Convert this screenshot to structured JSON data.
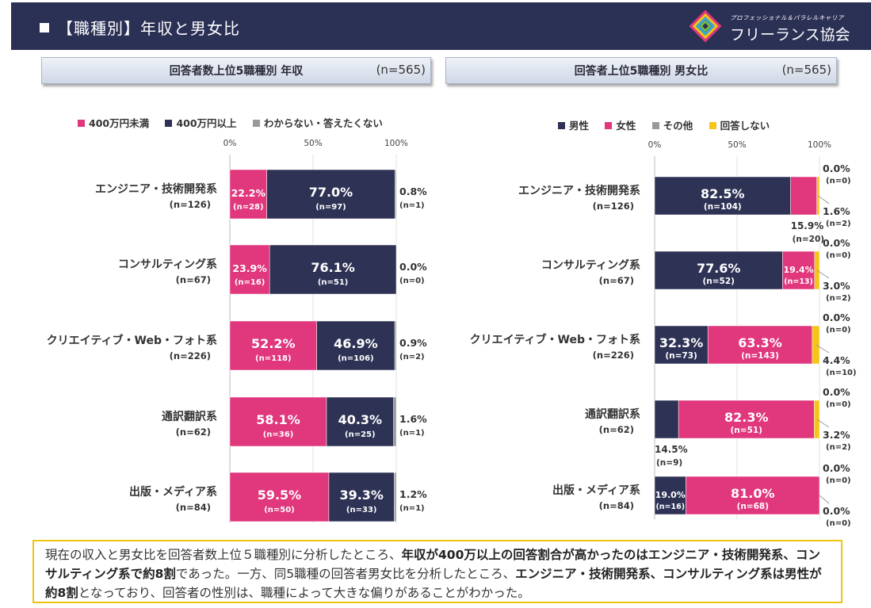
{
  "header": {
    "title": "【職種別】年収と男女比"
  },
  "logo": {
    "tagline": "プロフェッショナル＆パラレルキャリア",
    "name": "フリーランス協会"
  },
  "colors": {
    "pink": "#e0377d",
    "navy": "#2e3356",
    "gray": "#9a9a9a",
    "yellow": "#f5c518"
  },
  "ticks": [
    "0%",
    "50%",
    "100%"
  ],
  "chart_data": [
    {
      "type": "bar",
      "orientation": "horizontal",
      "stacked": true,
      "title": "回答者数上位5職種別 年収",
      "sample": "(n=565)",
      "xlim": [
        0,
        100
      ],
      "legend_position": "top",
      "categories": [
        {
          "name": "エンジニア・技術開発系",
          "n": "(n=126)"
        },
        {
          "name": "コンサルティング系",
          "n": "(n=67)"
        },
        {
          "name": "クリエイティブ・Web・フォト系",
          "n": "(n=226)"
        },
        {
          "name": "通訳翻訳系",
          "n": "(n=62)"
        },
        {
          "name": "出版・メディア系",
          "n": "(n=84)"
        }
      ],
      "series": [
        {
          "name": "400万円未満",
          "color": "#e0377d",
          "values": [
            22.2,
            23.9,
            52.2,
            58.1,
            59.5
          ],
          "labels": [
            "22.2%",
            "23.9%",
            "52.2%",
            "58.1%",
            "59.5%"
          ],
          "counts": [
            "(n=28)",
            "(n=16)",
            "(n=118)",
            "(n=36)",
            "(n=50)"
          ]
        },
        {
          "name": "400万円以上",
          "color": "#2e3356",
          "values": [
            77.0,
            76.1,
            46.9,
            40.3,
            39.3
          ],
          "labels": [
            "77.0%",
            "76.1%",
            "46.9%",
            "40.3%",
            "39.3%"
          ],
          "counts": [
            "(n=97)",
            "(n=51)",
            "(n=106)",
            "(n=25)",
            "(n=33)"
          ]
        },
        {
          "name": "わからない・答えたくない",
          "color": "#9a9a9a",
          "values": [
            0.8,
            0.0,
            0.9,
            1.6,
            1.2
          ],
          "labels": [
            "0.8%",
            "0.0%",
            "0.9%",
            "1.6%",
            "1.2%"
          ],
          "counts": [
            "(n=1)",
            "(n=0)",
            "(n=2)",
            "(n=1)",
            "(n=1)"
          ]
        }
      ]
    },
    {
      "type": "bar",
      "orientation": "horizontal",
      "stacked": true,
      "title": "回答者上位5職種別 男女比",
      "sample": "(n=565)",
      "xlim": [
        0,
        100
      ],
      "legend_position": "top",
      "categories": [
        {
          "name": "エンジニア・技術開発系",
          "n": "(n=126)"
        },
        {
          "name": "コンサルティング系",
          "n": "(n=67)"
        },
        {
          "name": "クリエイティブ・Web・フォト系",
          "n": "(n=226)"
        },
        {
          "name": "通訳翻訳系",
          "n": "(n=62)"
        },
        {
          "name": "出版・メディア系",
          "n": "(n=84)"
        }
      ],
      "series": [
        {
          "name": "男性",
          "color": "#2e3356",
          "values": [
            82.5,
            77.6,
            32.3,
            14.5,
            19.0
          ],
          "labels": [
            "82.5%",
            "77.6%",
            "32.3%",
            "14.5%",
            "19.0%"
          ],
          "counts": [
            "(n=104)",
            "(n=52)",
            "(n=73)",
            "(n=9)",
            "(n=16)"
          ]
        },
        {
          "name": "女性",
          "color": "#e0377d",
          "values": [
            15.9,
            19.4,
            63.3,
            82.3,
            81.0
          ],
          "labels": [
            "15.9%",
            "19.4%",
            "63.3%",
            "82.3%",
            "81.0%"
          ],
          "counts": [
            "(n=20)",
            "(n=13)",
            "(n=143)",
            "(n=51)",
            "(n=68)"
          ]
        },
        {
          "name": "その他",
          "color": "#9a9a9a",
          "values": [
            0.0,
            0.0,
            0.0,
            0.0,
            0.0
          ],
          "labels": [
            "0.0%",
            "0.0%",
            "0.0%",
            "0.0%",
            "0.0%"
          ],
          "counts": [
            "(n=0)",
            "(n=0)",
            "(n=0)",
            "(n=0)",
            "(n=0)"
          ]
        },
        {
          "name": "回答しない",
          "color": "#f5c518",
          "values": [
            1.6,
            3.0,
            4.4,
            3.2,
            0.0
          ],
          "labels": [
            "1.6%",
            "3.0%",
            "4.4%",
            "3.2%",
            "0.0%"
          ],
          "counts": [
            "(n=2)",
            "(n=2)",
            "(n=10)",
            "(n=2)",
            "(n=0)"
          ]
        }
      ]
    }
  ],
  "note": {
    "segments": [
      {
        "text": "現在の収入と男女比を回答者数上位５職種別に分析したところ、",
        "bold": false
      },
      {
        "text": "年収が400万以上の回答割合が高かったのはエンジニア・技術開発系、コンサルティング系で約8割",
        "bold": true
      },
      {
        "text": "であった。一方、同5職種の回答者男女比を分析したところ、",
        "bold": false
      },
      {
        "text": "エンジニア・技術開発系、コンサルティング系は男性が約8割",
        "bold": true
      },
      {
        "text": "となっており、回答者の性別は、職種によって大きな偏りがあることがわかった。",
        "bold": false
      }
    ]
  }
}
